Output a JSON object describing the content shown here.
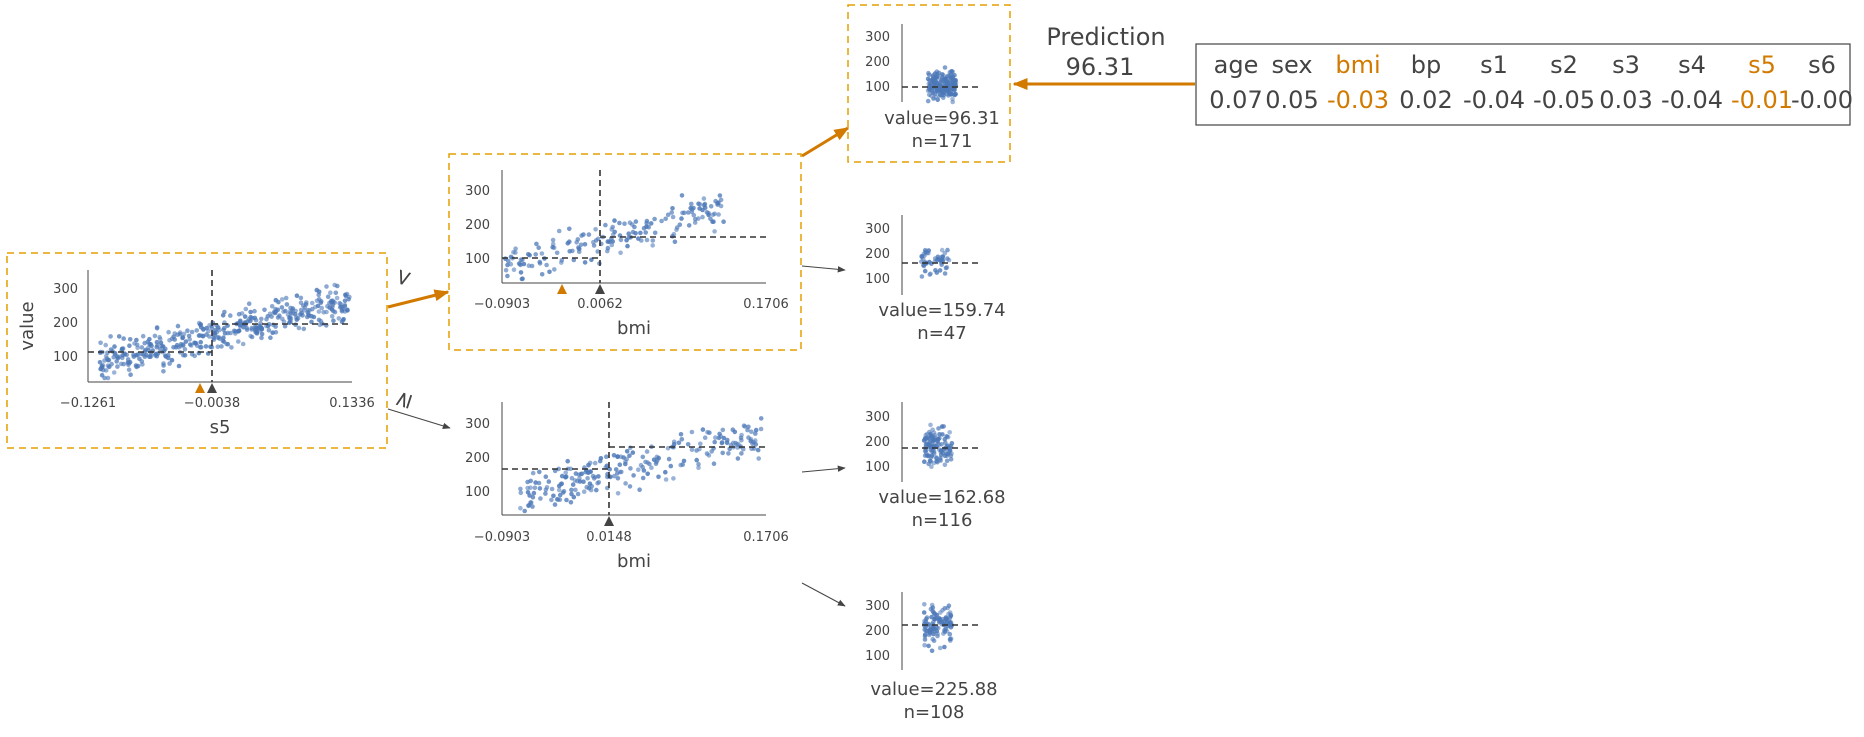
{
  "colors": {
    "dot": "#4C78B8",
    "highlight": "#D27A00",
    "box": "#E69F00",
    "text": "#444444"
  },
  "root": {
    "ylabel": "value",
    "xlabel": "s5",
    "x_ticks": [
      "−0.1261",
      "−0.0038",
      "0.1336"
    ],
    "y_ticks": [
      "100",
      "200",
      "300"
    ],
    "split": -0.0038,
    "instance": -0.01,
    "left_mean": 110,
    "right_mean": 190
  },
  "edge_left": "<",
  "edge_right": "≥",
  "bmi_left": {
    "xlabel": "bmi",
    "x_ticks": [
      "−0.0903",
      "0.0062",
      "0.1706"
    ],
    "y_ticks": [
      "100",
      "200",
      "300"
    ],
    "split": 0.0062,
    "instance": -0.03,
    "left_mean": 96,
    "right_mean": 160
  },
  "bmi_right": {
    "xlabel": "bmi",
    "x_ticks": [
      "−0.0903",
      "0.0148",
      "0.1706"
    ],
    "y_ticks": [
      "100",
      "200",
      "300"
    ],
    "split": 0.0148,
    "left_mean": 163,
    "right_mean": 226
  },
  "leaves": [
    {
      "value": "value=96.31",
      "n": "n=171",
      "mean": 96.31,
      "y_ticks": [
        "100",
        "200",
        "300"
      ]
    },
    {
      "value": "value=159.74",
      "n": "n=47",
      "mean": 159.74,
      "y_ticks": [
        "100",
        "200",
        "300"
      ]
    },
    {
      "value": "value=162.68",
      "n": "n=116",
      "mean": 162.68,
      "y_ticks": [
        "100",
        "200",
        "300"
      ]
    },
    {
      "value": "value=225.88",
      "n": "n=108",
      "mean": 225.88,
      "y_ticks": [
        "100",
        "200",
        "300"
      ]
    }
  ],
  "prediction": {
    "title": "Prediction",
    "value": "96.31"
  },
  "instance": {
    "features": [
      "age",
      "sex",
      "bmi",
      "bp",
      "s1",
      "s2",
      "s3",
      "s4",
      "s5",
      "s6"
    ],
    "values": [
      "0.07",
      "0.05",
      "-0.03",
      "0.02",
      "-0.04",
      "-0.05",
      "0.03",
      "-0.04",
      "-0.01",
      "-0.00"
    ],
    "highlighted": [
      "bmi",
      "s5"
    ]
  }
}
